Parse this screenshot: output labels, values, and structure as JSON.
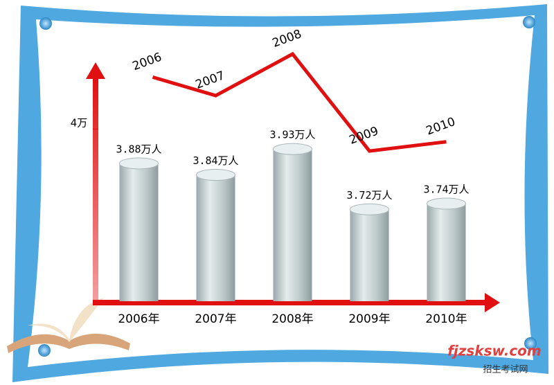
{
  "chart_data": {
    "type": "bar",
    "categories": [
      "2006年",
      "2007年",
      "2008年",
      "2009年",
      "2010年"
    ],
    "values": [
      3.88,
      3.84,
      3.93,
      3.72,
      3.74
    ],
    "value_labels": [
      "3.88万人",
      "3.84万人",
      "3.93万人",
      "3.72万人",
      "3.74万人"
    ],
    "line_labels": [
      "2006",
      "2007",
      "2008",
      "2009",
      "2010"
    ],
    "line_color": "#e01010",
    "axis_color": "#e01010",
    "ylim": [
      3.4,
      4.22
    ],
    "yticks": [
      {
        "value": 4,
        "label": "4万"
      }
    ]
  },
  "watermark": {
    "site": "fjzsksw.com",
    "name": "招生考试网"
  }
}
